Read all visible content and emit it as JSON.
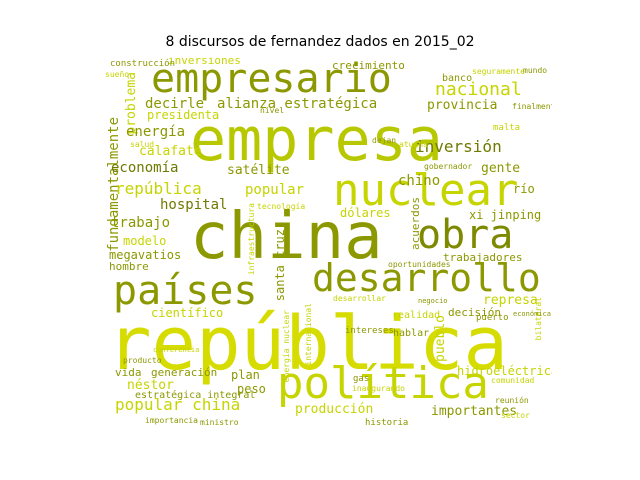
{
  "title": "8 discursos de fernandez dados en 2015_02",
  "palette": {
    "lime": "#c6d400",
    "olive": "#8c9800",
    "yellow": "#dde31a",
    "dark_olive": "#6f7a00"
  },
  "words": [
    {
      "text": "república",
      "color": "#d6dc00"
    },
    {
      "text": "empresa",
      "color": "#b8c800"
    },
    {
      "text": "china",
      "color": "#8c9800"
    },
    {
      "text": "empresario",
      "color": "#8c9800"
    },
    {
      "text": "nuclear",
      "color": "#c6d400"
    },
    {
      "text": "obra",
      "color": "#7d8a00"
    },
    {
      "text": "desarrollo",
      "color": "#8c9800"
    },
    {
      "text": "países",
      "color": "#8c9800"
    },
    {
      "text": "política",
      "color": "#c6d400"
    },
    {
      "text": "nacional",
      "color": "#c6d400"
    },
    {
      "text": "alianza estratégica",
      "color": "#8c9800"
    },
    {
      "text": "provincia",
      "color": "#8c9800"
    },
    {
      "text": "decirle",
      "color": "#8c9800"
    },
    {
      "text": "presidenta",
      "color": "#c6d400"
    },
    {
      "text": "inversión",
      "color": "#6f7a00"
    },
    {
      "text": "inversiones",
      "color": "#c6d400"
    },
    {
      "text": "crecimiento",
      "color": "#8c9800"
    },
    {
      "text": "construcción",
      "color": "#8c9800"
    },
    {
      "text": "banco",
      "color": "#8c9800"
    },
    {
      "text": "fundamentalmente",
      "color": "#8c9800"
    },
    {
      "text": "problema",
      "color": "#c6d400"
    },
    {
      "text": "energía",
      "color": "#8c9800"
    },
    {
      "text": "calafate",
      "color": "#c6d400"
    },
    {
      "text": "economía",
      "color": "#6f7a00"
    },
    {
      "text": "satélite",
      "color": "#8c9800"
    },
    {
      "text": "popular",
      "color": "#c6d400"
    },
    {
      "text": "chino",
      "color": "#8c9800"
    },
    {
      "text": "gente",
      "color": "#8c9800"
    },
    {
      "text": "república",
      "color": "#c6d400"
    },
    {
      "text": "hospital",
      "color": "#6f7a00"
    },
    {
      "text": "trabajo",
      "color": "#8c9800"
    },
    {
      "text": "dólares",
      "color": "#c6d400"
    },
    {
      "text": "xi jinping",
      "color": "#8c9800"
    },
    {
      "text": "modelo",
      "color": "#c6d400"
    },
    {
      "text": "megavatios",
      "color": "#8c9800"
    },
    {
      "text": "hombre",
      "color": "#8c9800"
    },
    {
      "text": "santa cruz",
      "color": "#8c9800"
    },
    {
      "text": "acuerdos",
      "color": "#8c9800"
    },
    {
      "text": "trabajadores",
      "color": "#8c9800"
    },
    {
      "text": "represa",
      "color": "#c6d400"
    },
    {
      "text": "científico",
      "color": "#c6d400"
    },
    {
      "text": "decisión",
      "color": "#8c9800"
    },
    {
      "text": "pueblo",
      "color": "#c6d400"
    },
    {
      "text": "hablar",
      "color": "#8c9800"
    },
    {
      "text": "hidroeléctrica",
      "color": "#c6d400"
    },
    {
      "text": "vida",
      "color": "#8c9800"
    },
    {
      "text": "generación",
      "color": "#8c9800"
    },
    {
      "text": "néstor",
      "color": "#c6d400"
    },
    {
      "text": "estratégica integral",
      "color": "#8c9800"
    },
    {
      "text": "plan",
      "color": "#8c9800"
    },
    {
      "text": "peso",
      "color": "#8c9800"
    },
    {
      "text": "popular china",
      "color": "#c6d400"
    },
    {
      "text": "producción",
      "color": "#c6d400"
    },
    {
      "text": "importantes",
      "color": "#8c9800"
    },
    {
      "text": "gas",
      "color": "#8c9800"
    },
    {
      "text": "realidad",
      "color": "#c6d400"
    },
    {
      "text": "puerto",
      "color": "#8c9800"
    },
    {
      "text": "río",
      "color": "#8c9800"
    },
    {
      "text": "finalmente",
      "color": "#8c9800"
    },
    {
      "text": "malta",
      "color": "#c6d400"
    },
    {
      "text": "seguramente",
      "color": "#c6d400"
    },
    {
      "text": "atucha",
      "color": "#c6d400"
    },
    {
      "text": "gobernador",
      "color": "#8c9800"
    },
    {
      "text": "nivel",
      "color": "#8c9800"
    },
    {
      "text": "energía nuclear",
      "color": "#c6d400"
    },
    {
      "text": "historia",
      "color": "#8c9800"
    },
    {
      "text": "sector",
      "color": "#c6d400"
    },
    {
      "text": "inaugurando",
      "color": "#c6d400"
    },
    {
      "text": "oportunidades",
      "color": "#8c9800"
    },
    {
      "text": "producto",
      "color": "#8c9800"
    },
    {
      "text": "intereses",
      "color": "#8c9800"
    },
    {
      "text": "desarrollar",
      "color": "#c6d400"
    },
    {
      "text": "tecnología",
      "color": "#c6d400"
    },
    {
      "text": "infraestructura",
      "color": "#c6d400"
    },
    {
      "text": "principales",
      "color": "#8c9800"
    },
    {
      "text": "importancia",
      "color": "#8c9800"
    },
    {
      "text": "ministro",
      "color": "#8c9800"
    },
    {
      "text": "internacional",
      "color": "#c6d400"
    },
    {
      "text": "dejan",
      "color": "#8c9800"
    },
    {
      "text": "salud",
      "color": "#c6d400"
    },
    {
      "text": "negocio",
      "color": "#8c9800"
    },
    {
      "text": "reunión",
      "color": "#8c9800"
    },
    {
      "text": "comunidad",
      "color": "#c6d400"
    },
    {
      "text": "sueño",
      "color": "#c6d400"
    },
    {
      "text": "mundo",
      "color": "#8c9800"
    },
    {
      "text": "bilateral",
      "color": "#c6d400"
    },
    {
      "text": "conferencia",
      "color": "#c6d400"
    },
    {
      "text": "económica",
      "color": "#8c9800"
    }
  ]
}
